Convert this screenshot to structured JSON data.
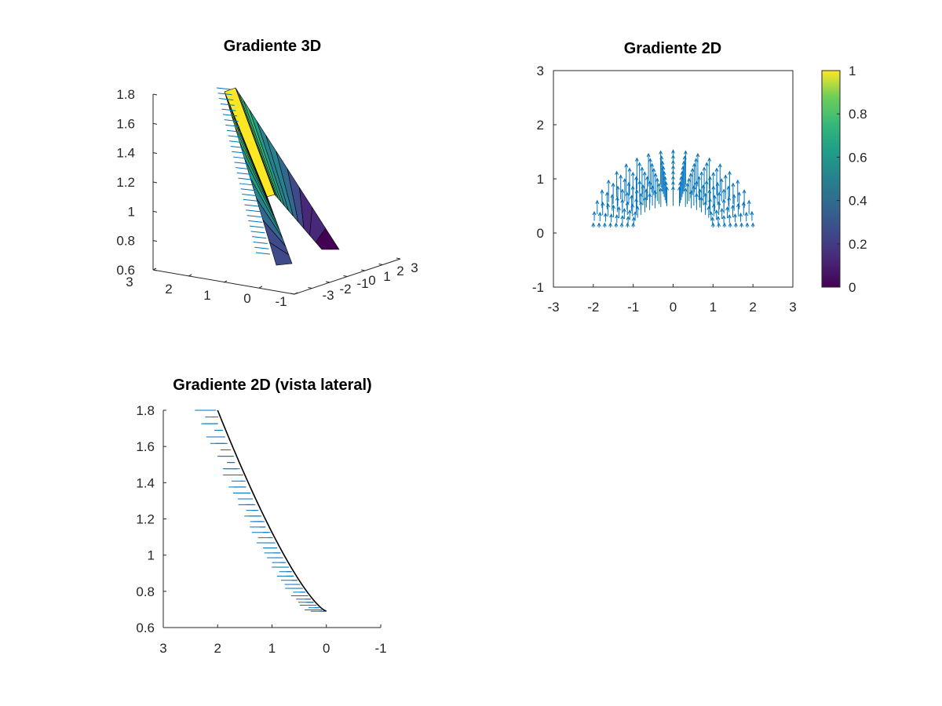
{
  "chart_data": [
    {
      "type": "surface",
      "title": "Gradiente 3D",
      "xticks": [
        "3",
        "2",
        "1",
        "0",
        "-1"
      ],
      "yticks": [
        "-3",
        "-2",
        "-1",
        "0",
        "1",
        "2",
        "3"
      ],
      "zticks": [
        "0.6",
        "0.8",
        "1",
        "1.2",
        "1.4",
        "1.6",
        "1.8"
      ],
      "xlim": [
        -1,
        3
      ],
      "ylim": [
        -3,
        3
      ],
      "zlim": [
        0.6,
        1.8
      ],
      "colormap": "viridis",
      "quiver_color": "#0072bd"
    },
    {
      "type": "quiver",
      "title": "Gradiente 2D",
      "xlim": [
        -3,
        3
      ],
      "ylim": [
        -1,
        3
      ],
      "xticks": [
        "-3",
        "-2",
        "-1",
        "0",
        "1",
        "2",
        "3"
      ],
      "yticks": [
        "-1",
        "0",
        "1",
        "2",
        "3"
      ],
      "inner_radius": 1,
      "outer_radius": 2,
      "arrow_color": "#0072bd",
      "colorbar": {
        "ticks": [
          "0",
          "0.2",
          "0.4",
          "0.6",
          "0.8",
          "1"
        ],
        "range": [
          0,
          1
        ],
        "colormap": "viridis"
      }
    },
    {
      "type": "quiver",
      "title": "Gradiente 2D (vista lateral)",
      "xlim": [
        -1,
        3
      ],
      "ylim": [
        0.6,
        1.8
      ],
      "xticks": [
        "3",
        "2",
        "1",
        "0",
        "-1"
      ],
      "yticks": [
        "0.6",
        "0.8",
        "1",
        "1.2",
        "1.4",
        "1.6",
        "1.8"
      ],
      "curve": [
        [
          2.0,
          1.8
        ],
        [
          0.0,
          0.69
        ]
      ],
      "arrow_color": "#0072bd"
    }
  ]
}
